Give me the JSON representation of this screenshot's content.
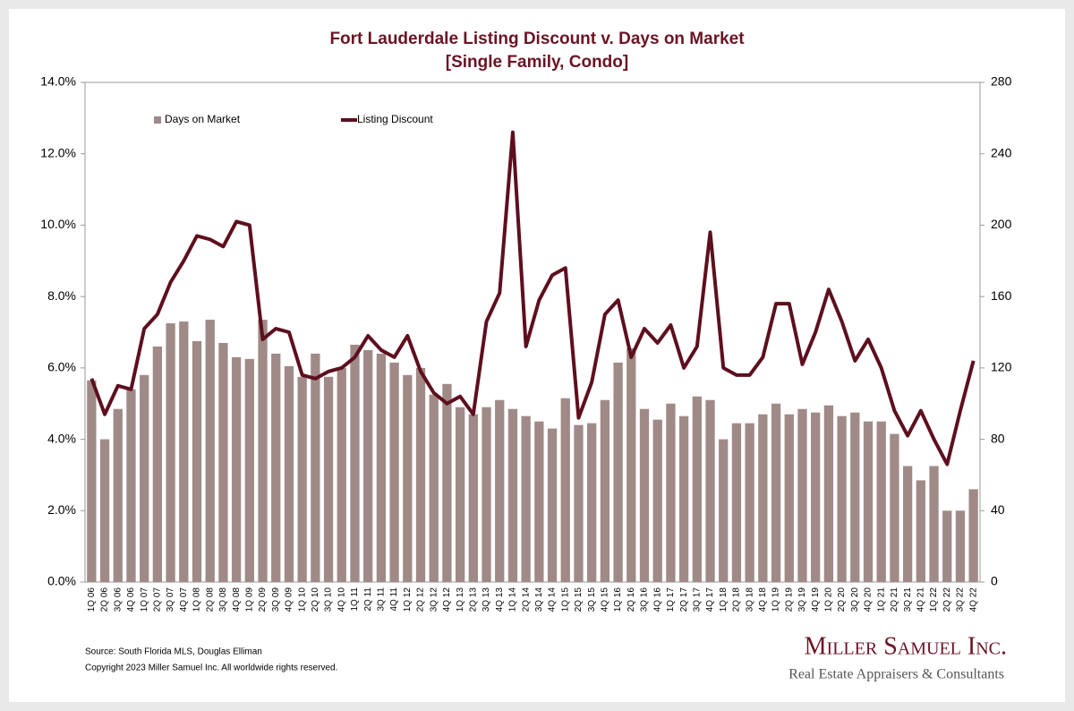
{
  "chart_data": {
    "type": "bar-line",
    "title": "Fort Lauderdale Listing Discount v. Days on Market",
    "subtitle": "[Single Family, Condo]",
    "categories": [
      "1Q 06",
      "2Q 06",
      "3Q 06",
      "4Q 06",
      "1Q 07",
      "2Q 07",
      "3Q 07",
      "4Q 07",
      "1Q 08",
      "2Q 08",
      "3Q 08",
      "4Q 08",
      "1Q 09",
      "2Q 09",
      "3Q 09",
      "4Q 09",
      "1Q 10",
      "2Q 10",
      "3Q 10",
      "4Q 10",
      "1Q 11",
      "2Q 11",
      "3Q 11",
      "4Q 11",
      "1Q 12",
      "2Q 12",
      "3Q 12",
      "4Q 12",
      "1Q 13",
      "2Q 13",
      "3Q 13",
      "4Q 13",
      "1Q 14",
      "2Q 14",
      "3Q 14",
      "4Q 14",
      "1Q 15",
      "2Q 15",
      "3Q 15",
      "4Q 15",
      "1Q 16",
      "2Q 16",
      "3Q 16",
      "4Q 16",
      "1Q 17",
      "2Q 17",
      "3Q 17",
      "4Q 17",
      "1Q 18",
      "2Q 18",
      "3Q 18",
      "4Q 18",
      "1Q 19",
      "2Q 19",
      "3Q 19",
      "4Q 19",
      "1Q 20",
      "2Q 20",
      "3Q 20",
      "4Q 20",
      "1Q 21",
      "2Q 21",
      "3Q 21",
      "4Q 21",
      "1Q 22",
      "2Q 22",
      "3Q 22",
      "4Q 22"
    ],
    "series": [
      {
        "name": "Days on Market",
        "type": "bar",
        "axis": "y2",
        "color": "#a08a87",
        "values": [
          113,
          80,
          97,
          108,
          116,
          132,
          145,
          146,
          135,
          147,
          134,
          126,
          125,
          147,
          128,
          121,
          115,
          128,
          115,
          120,
          133,
          130,
          128,
          123,
          116,
          120,
          105,
          111,
          98,
          94,
          98,
          102,
          97,
          93,
          90,
          86,
          103,
          88,
          89,
          102,
          123,
          131,
          97,
          91,
          100,
          93,
          104,
          102,
          80,
          89,
          89,
          94,
          100,
          94,
          97,
          95,
          99,
          93,
          95,
          90,
          90,
          83,
          65,
          57,
          65,
          40,
          40,
          52
        ]
      },
      {
        "name": "Listing Discount",
        "type": "line",
        "color": "#5e0f1e",
        "values": [
          5.7,
          4.7,
          5.5,
          5.4,
          7.1,
          7.5,
          8.4,
          9.0,
          9.7,
          9.6,
          9.4,
          10.1,
          10.0,
          6.8,
          7.1,
          7.0,
          5.8,
          5.7,
          5.9,
          6.0,
          6.3,
          6.9,
          6.5,
          6.3,
          6.9,
          5.9,
          5.3,
          5.0,
          5.2,
          4.7,
          7.3,
          8.1,
          12.6,
          6.6,
          7.9,
          8.6,
          8.8,
          4.6,
          5.6,
          7.5,
          7.9,
          6.3,
          7.1,
          6.7,
          7.2,
          6.0,
          6.6,
          9.8,
          6.0,
          5.8,
          5.8,
          6.3,
          7.8,
          7.8,
          6.1,
          7.0,
          8.2,
          7.3,
          6.2,
          6.8,
          6.0,
          4.8,
          4.1,
          4.8,
          4.0,
          3.3,
          4.8,
          6.2
        ]
      }
    ],
    "ylim": [
      0,
      14
    ],
    "yticks": [
      {
        "value": 0,
        "label": "0.0%"
      },
      {
        "value": 2,
        "label": "2.0%"
      },
      {
        "value": 4,
        "label": "4.0%"
      },
      {
        "value": 6,
        "label": "6.0%"
      },
      {
        "value": 8,
        "label": "8.0%"
      },
      {
        "value": 10,
        "label": "10.0%"
      },
      {
        "value": 12,
        "label": "12.0%"
      },
      {
        "value": 14,
        "label": "14.0%"
      }
    ],
    "y2lim": [
      0,
      280
    ],
    "y2ticks": [
      0,
      40,
      80,
      120,
      160,
      200,
      240,
      280
    ],
    "legend": "top",
    "source": "Source: South Florida MLS, Douglas Elliman",
    "copyright": "Copyright 2023 Miller Samuel Inc.  All worldwide rights reserved.",
    "logo_name": "Miller Samuel Inc.",
    "logo_tagline": "Real Estate Appraisers & Consultants"
  }
}
